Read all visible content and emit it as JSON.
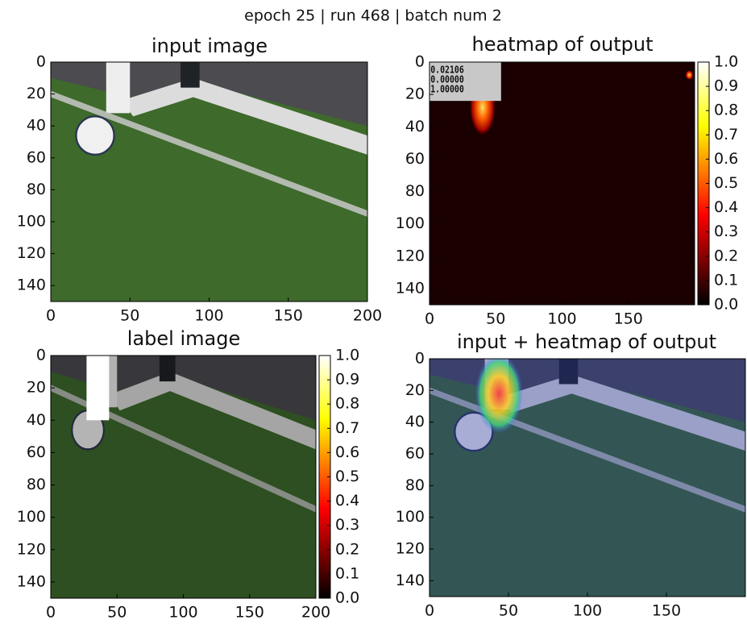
{
  "suptitle": "epoch 25 | run 468 | batch num 2",
  "chart_data": [
    {
      "type": "image",
      "title": "input image",
      "xlim": [
        0,
        200
      ],
      "ylim": [
        150,
        0
      ],
      "xticks": [
        0,
        50,
        100,
        150,
        200
      ],
      "yticks": [
        0,
        20,
        40,
        60,
        80,
        100,
        120,
        140
      ]
    },
    {
      "type": "image",
      "title": "heatmap of output",
      "xlim": [
        0,
        200
      ],
      "ylim": [
        150,
        0
      ],
      "xticks": [
        0,
        50,
        100,
        150
      ],
      "yticks": [
        0,
        20,
        40,
        60,
        80,
        100,
        120,
        140
      ],
      "clim": [
        0,
        1
      ],
      "cticks": [
        {
          "value": 0,
          "label": "0.0"
        },
        0.1,
        0.2,
        0.3,
        0.4,
        0.5,
        0.6,
        0.7,
        0.8,
        0.9,
        {
          "value": 1,
          "label": "1.0"
        }
      ],
      "annotations": [
        "mean: 0.02106",
        "min: 0.00000",
        "max: 1.00000"
      ]
    },
    {
      "type": "image",
      "title": "label image",
      "xlim": [
        0,
        200
      ],
      "ylim": [
        150,
        0
      ],
      "xticks": [
        0,
        50,
        100,
        150,
        200
      ],
      "yticks": [
        0,
        20,
        40,
        60,
        80,
        100,
        120,
        140
      ],
      "clim": [
        0,
        1
      ],
      "cticks": [
        {
          "value": 0,
          "label": "0.0"
        },
        0.1,
        0.2,
        0.3,
        0.4,
        0.5,
        0.6,
        0.7,
        0.8,
        0.9,
        {
          "value": 1,
          "label": "1.0"
        }
      ]
    },
    {
      "type": "image",
      "title": "input + heatmap of output",
      "xlim": [
        0,
        200
      ],
      "ylim": [
        150,
        0
      ],
      "xticks": [
        0,
        50,
        100,
        150
      ],
      "yticks": [
        0,
        20,
        40,
        60,
        80,
        100,
        120,
        140
      ]
    }
  ]
}
